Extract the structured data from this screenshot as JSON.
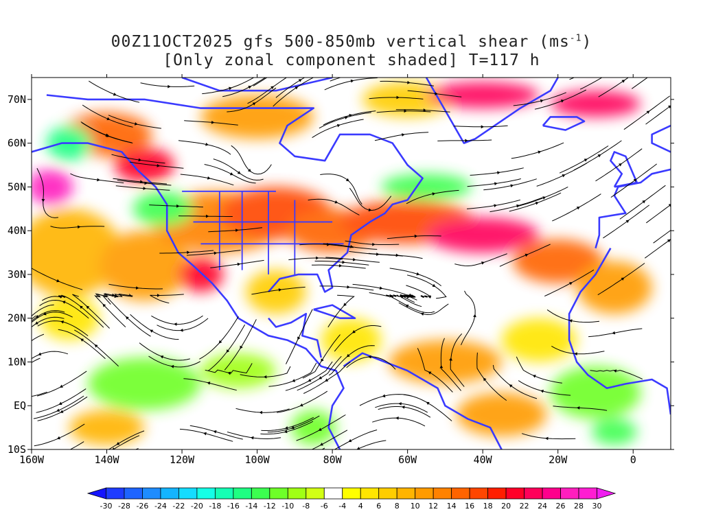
{
  "title": {
    "line1": "00Z11OCT2025 gfs 500-850mb vertical shear (ms",
    "line1_sup": "-1",
    "line1_end": ")",
    "line2": "[Only zonal component shaded] T=117 h"
  },
  "axes": {
    "lon_ticks": [
      "160W",
      "140W",
      "120W",
      "100W",
      "80W",
      "60W",
      "40W",
      "20W",
      "0"
    ],
    "lon_values": [
      -160,
      -140,
      -120,
      -100,
      -80,
      -60,
      -40,
      -20,
      0
    ],
    "lat_ticks": [
      "70N",
      "60N",
      "50N",
      "40N",
      "30N",
      "20N",
      "10N",
      "EQ",
      "10S"
    ],
    "lat_values": [
      70,
      60,
      50,
      40,
      30,
      20,
      10,
      0,
      -10
    ],
    "lon_range": [
      -160,
      10
    ],
    "lat_range": [
      -10,
      75
    ]
  },
  "colorbar": {
    "labels": [
      "-30",
      "-28",
      "-26",
      "-24",
      "-22",
      "-20",
      "-18",
      "-16",
      "-14",
      "-12",
      "-10",
      "-8",
      "-6",
      "-4",
      "4",
      "6",
      "8",
      "10",
      "12",
      "14",
      "16",
      "18",
      "20",
      "22",
      "24",
      "26",
      "28",
      "30"
    ],
    "colors": [
      "#1414ff",
      "#1e3cff",
      "#1e64ff",
      "#1e8cff",
      "#14b4ff",
      "#14dcff",
      "#14ffe6",
      "#14ffb4",
      "#1eff82",
      "#3cff50",
      "#6eff28",
      "#a0ff14",
      "#d2ff14",
      "#ffffff",
      "#ffff00",
      "#ffe600",
      "#ffcd00",
      "#ffb400",
      "#ff9b00",
      "#ff8200",
      "#ff6400",
      "#ff4600",
      "#ff1e00",
      "#ff0028",
      "#ff005a",
      "#ff008c",
      "#ff1ebe",
      "#ff1ed2",
      "#f01ef0"
    ]
  },
  "colors": {
    "coastline": "#3a3aff",
    "streamline": "#000000"
  }
}
